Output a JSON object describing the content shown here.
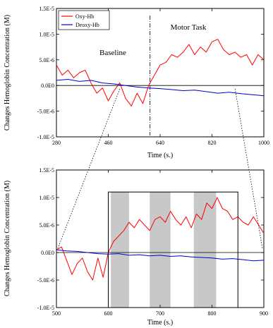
{
  "chart_data": [
    {
      "type": "line",
      "ylabel": "Changes Hemoglobin Concentration (M)",
      "xlabel": "Time (s.)",
      "xlim": [
        280,
        1000
      ],
      "ylim": [
        -1e-05,
        1.5e-05
      ],
      "x_ticks": [
        "280",
        "460",
        "640",
        "820",
        "1000"
      ],
      "y_ticks": [
        "1.5E-5",
        "1.0E-5",
        "5.0E-6",
        "0.0E0",
        "-5.0E-6",
        "-1.0E-5"
      ],
      "legend_position": "top-left",
      "annotations": [
        "Baseline",
        "Motor Task"
      ],
      "task_onset_x": 605,
      "zoom_window_x": [
        500,
        900
      ],
      "series": [
        {
          "name": "Oxy-Hb",
          "color": "#ff0000",
          "x": [
            280,
            300,
            320,
            340,
            360,
            380,
            400,
            420,
            440,
            460,
            480,
            500,
            520,
            540,
            560,
            580,
            600,
            620,
            640,
            660,
            680,
            700,
            720,
            740,
            760,
            780,
            800,
            820,
            840,
            860,
            880,
            900,
            920,
            940,
            960,
            980,
            1000
          ],
          "y": [
            4e-06,
            2e-06,
            3e-06,
            1.5e-06,
            2.5e-06,
            3e-06,
            5e-07,
            -1.5e-06,
            -5e-07,
            -3e-06,
            -1e-06,
            5e-07,
            -2.5e-06,
            -4e-06,
            -1.5e-06,
            -3.5e-06,
            0.0,
            2e-06,
            4e-06,
            4.5e-06,
            6e-06,
            5.5e-06,
            6.5e-06,
            8e-06,
            6e-06,
            7.5e-06,
            6.5e-06,
            8.5e-06,
            9e-06,
            7e-06,
            6e-06,
            6.5e-06,
            5.5e-06,
            6e-06,
            4e-06,
            6e-06,
            5e-06
          ]
        },
        {
          "name": "Deoxy-Hb",
          "color": "#0000cc",
          "x": [
            280,
            320,
            360,
            400,
            440,
            480,
            520,
            560,
            600,
            640,
            680,
            720,
            760,
            800,
            840,
            880,
            920,
            960,
            1000
          ],
          "y": [
            1e-06,
            1.2e-06,
            8e-07,
            1e-06,
            5e-07,
            3e-07,
            0.0,
            -3e-07,
            -5e-07,
            -6e-07,
            -8e-07,
            -1e-06,
            -9e-07,
            -1.2e-06,
            -1.5e-06,
            -1.3e-06,
            -1.6e-06,
            -1.8e-06,
            -2e-06
          ]
        }
      ]
    },
    {
      "type": "line",
      "ylabel": "Changes Hemoglobin Concentration (M)",
      "xlabel": "Time (s.)",
      "xlim": [
        500,
        900
      ],
      "ylim": [
        -1e-05,
        1.5e-05
      ],
      "x_ticks": [
        "500",
        "600",
        "700",
        "800",
        "900"
      ],
      "y_ticks": [
        "1.5E-5",
        "1.0E-5",
        "5.0E-6",
        "0.0E0",
        "-5.0E-6",
        "-1.0E-5"
      ],
      "task_box_x": [
        600,
        850
      ],
      "task_box_y": [
        -1e-05,
        1.1e-05
      ],
      "shaded_x": [
        [
          605,
          640
        ],
        [
          680,
          720
        ],
        [
          765,
          808
        ]
      ],
      "series": [
        {
          "name": "Oxy-Hb",
          "color": "#ff0000",
          "x": [
            500,
            510,
            520,
            530,
            540,
            550,
            560,
            570,
            580,
            590,
            600,
            610,
            620,
            630,
            640,
            650,
            660,
            670,
            680,
            690,
            700,
            710,
            720,
            730,
            740,
            750,
            760,
            770,
            780,
            790,
            800,
            810,
            820,
            830,
            840,
            850,
            860,
            870,
            880,
            890,
            900
          ],
          "y": [
            5e-07,
            1e-06,
            -1.5e-06,
            -4e-06,
            -2e-06,
            -1e-06,
            -3.5e-06,
            -5e-06,
            -1e-06,
            -4.5e-06,
            0.0,
            2e-06,
            3e-06,
            4e-06,
            5.5e-06,
            4.5e-06,
            6e-06,
            5e-06,
            4e-06,
            6e-06,
            6.5e-06,
            5.5e-06,
            7.5e-06,
            6e-06,
            5e-06,
            6.5e-06,
            4.5e-06,
            7e-06,
            6e-06,
            9e-06,
            8e-06,
            1e-05,
            8e-06,
            7.5e-06,
            6e-06,
            6.5e-06,
            5.5e-06,
            5e-06,
            6.5e-06,
            5e-06,
            3.5e-06
          ]
        },
        {
          "name": "Deoxy-Hb",
          "color": "#0000cc",
          "x": [
            500,
            520,
            540,
            560,
            580,
            600,
            620,
            640,
            660,
            680,
            700,
            720,
            740,
            760,
            780,
            800,
            820,
            840,
            860,
            880,
            900
          ],
          "y": [
            5e-07,
            3e-07,
            2e-07,
            0.0,
            -2e-07,
            -3e-07,
            -2e-07,
            -5e-07,
            -4e-07,
            -6e-07,
            -5e-07,
            -7e-07,
            -6e-07,
            -8e-07,
            -9e-07,
            -1e-06,
            -1.2e-06,
            -1.1e-06,
            -1.3e-06,
            -1.5e-06,
            -1.4e-06
          ]
        }
      ]
    }
  ]
}
